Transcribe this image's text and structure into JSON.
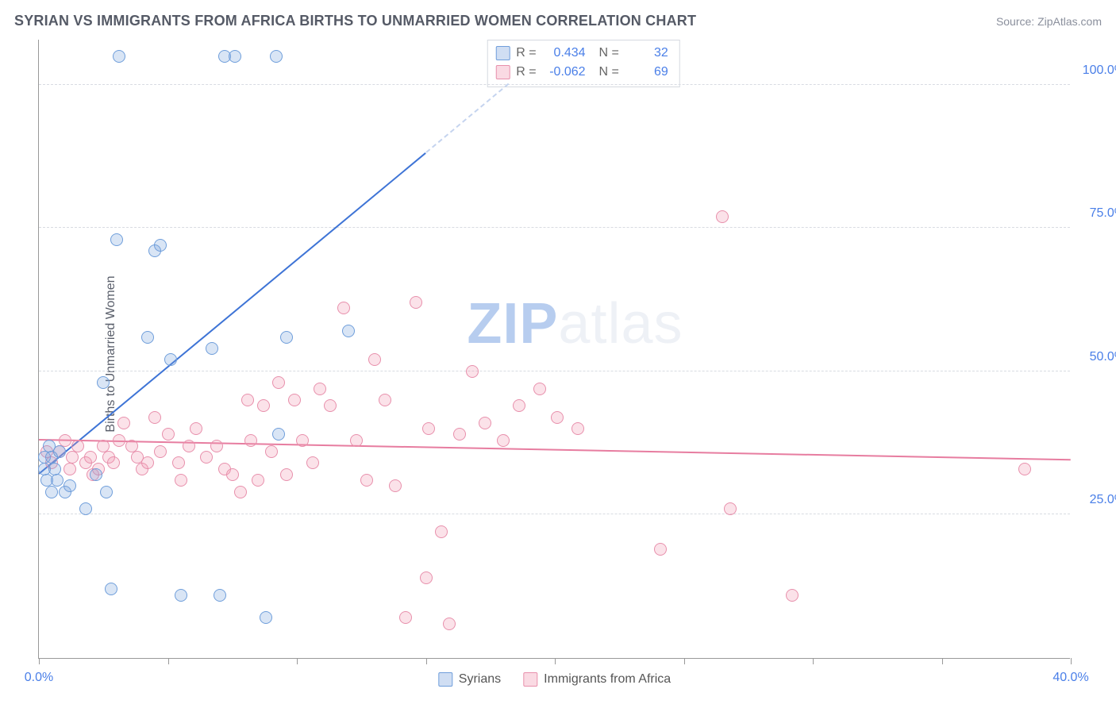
{
  "title": "SYRIAN VS IMMIGRANTS FROM AFRICA BIRTHS TO UNMARRIED WOMEN CORRELATION CHART",
  "source": "Source: ZipAtlas.com",
  "ylabel": "Births to Unmarried Women",
  "watermark_a": "ZIP",
  "watermark_b": "atlas",
  "chart": {
    "type": "scatter",
    "xlim": [
      0,
      40
    ],
    "ylim": [
      0,
      108
    ],
    "xtick_major": [
      0,
      5,
      10,
      15,
      20,
      25,
      30,
      35,
      40
    ],
    "xtick_labels": {
      "0": "0.0%",
      "40": "40.0%"
    },
    "yticks": [
      25,
      50,
      75,
      100
    ],
    "ytick_labels": {
      "25": "25.0%",
      "50": "50.0%",
      "75": "75.0%",
      "100": "100.0%"
    },
    "background_color": "#ffffff",
    "grid_color": "#d8dbe2",
    "axis_color": "#999999",
    "tick_label_color": "#4a7fe8",
    "point_radius": 8,
    "series": {
      "blue": {
        "label": "Syrians",
        "fill_color": "rgba(120,160,220,0.28)",
        "stroke_color": "#6f9edb",
        "R": "0.434",
        "N": "32",
        "trend": {
          "x1": 0,
          "y1": 32,
          "x2": 15,
          "y2": 88,
          "color": "#3e74d6",
          "dashed_ext": {
            "x2": 18.2,
            "y2": 100
          }
        },
        "points": [
          [
            0.2,
            35
          ],
          [
            0.2,
            33
          ],
          [
            0.4,
            37
          ],
          [
            0.3,
            31
          ],
          [
            0.5,
            29
          ],
          [
            0.6,
            33
          ],
          [
            0.7,
            31
          ],
          [
            0.8,
            36
          ],
          [
            0.5,
            35
          ],
          [
            1.0,
            29
          ],
          [
            1.2,
            30
          ],
          [
            1.8,
            26
          ],
          [
            2.2,
            32
          ],
          [
            2.6,
            29
          ],
          [
            3.0,
            73
          ],
          [
            3.1,
            105
          ],
          [
            2.5,
            48
          ],
          [
            4.2,
            56
          ],
          [
            4.5,
            71
          ],
          [
            4.7,
            72
          ],
          [
            5.1,
            52
          ],
          [
            6.7,
            54
          ],
          [
            7.2,
            105
          ],
          [
            7.6,
            105
          ],
          [
            9.2,
            105
          ],
          [
            9.3,
            39
          ],
          [
            9.6,
            56
          ],
          [
            7.0,
            11
          ],
          [
            8.8,
            7
          ],
          [
            12.0,
            57
          ],
          [
            2.8,
            12
          ],
          [
            5.5,
            11
          ]
        ]
      },
      "pink": {
        "label": "Immigrants from Africa",
        "fill_color": "rgba(240,150,175,0.28)",
        "stroke_color": "#e890ac",
        "R": "-0.062",
        "N": "69",
        "trend": {
          "x1": 0,
          "y1": 38,
          "x2": 40,
          "y2": 34.5,
          "color": "#e77da0"
        },
        "points": [
          [
            0.3,
            36
          ],
          [
            0.5,
            34
          ],
          [
            0.8,
            36
          ],
          [
            1.0,
            38
          ],
          [
            1.2,
            33
          ],
          [
            1.3,
            35
          ],
          [
            1.5,
            37
          ],
          [
            1.8,
            34
          ],
          [
            2.0,
            35
          ],
          [
            2.1,
            32
          ],
          [
            2.3,
            33
          ],
          [
            2.5,
            37
          ],
          [
            2.7,
            35
          ],
          [
            2.9,
            34
          ],
          [
            3.1,
            38
          ],
          [
            3.3,
            41
          ],
          [
            3.6,
            37
          ],
          [
            3.8,
            35
          ],
          [
            4.0,
            33
          ],
          [
            4.2,
            34
          ],
          [
            4.5,
            42
          ],
          [
            4.7,
            36
          ],
          [
            5.0,
            39
          ],
          [
            5.4,
            34
          ],
          [
            5.8,
            37
          ],
          [
            5.5,
            31
          ],
          [
            6.1,
            40
          ],
          [
            6.5,
            35
          ],
          [
            6.9,
            37
          ],
          [
            7.2,
            33
          ],
          [
            7.5,
            32
          ],
          [
            7.8,
            29
          ],
          [
            8.1,
            45
          ],
          [
            8.2,
            38
          ],
          [
            8.5,
            31
          ],
          [
            8.7,
            44
          ],
          [
            9.0,
            36
          ],
          [
            9.3,
            48
          ],
          [
            9.6,
            32
          ],
          [
            9.9,
            45
          ],
          [
            10.2,
            38
          ],
          [
            10.6,
            34
          ],
          [
            10.9,
            47
          ],
          [
            11.3,
            44
          ],
          [
            11.8,
            61
          ],
          [
            12.3,
            38
          ],
          [
            12.7,
            31
          ],
          [
            13.0,
            52
          ],
          [
            13.4,
            45
          ],
          [
            13.8,
            30
          ],
          [
            14.2,
            7
          ],
          [
            14.6,
            62
          ],
          [
            15.1,
            40
          ],
          [
            15.6,
            22
          ],
          [
            15.9,
            6
          ],
          [
            16.3,
            39
          ],
          [
            16.8,
            50
          ],
          [
            17.3,
            41
          ],
          [
            18.0,
            38
          ],
          [
            18.6,
            44
          ],
          [
            19.4,
            47
          ],
          [
            20.1,
            42
          ],
          [
            20.9,
            40
          ],
          [
            24.1,
            19
          ],
          [
            26.5,
            77
          ],
          [
            26.8,
            26
          ],
          [
            29.2,
            11
          ],
          [
            38.2,
            33
          ],
          [
            15.0,
            14
          ]
        ]
      }
    },
    "r_legend": {
      "rows": [
        {
          "series": "blue",
          "R": "0.434",
          "N": "32"
        },
        {
          "series": "pink",
          "R": "-0.062",
          "N": "69"
        }
      ]
    }
  }
}
